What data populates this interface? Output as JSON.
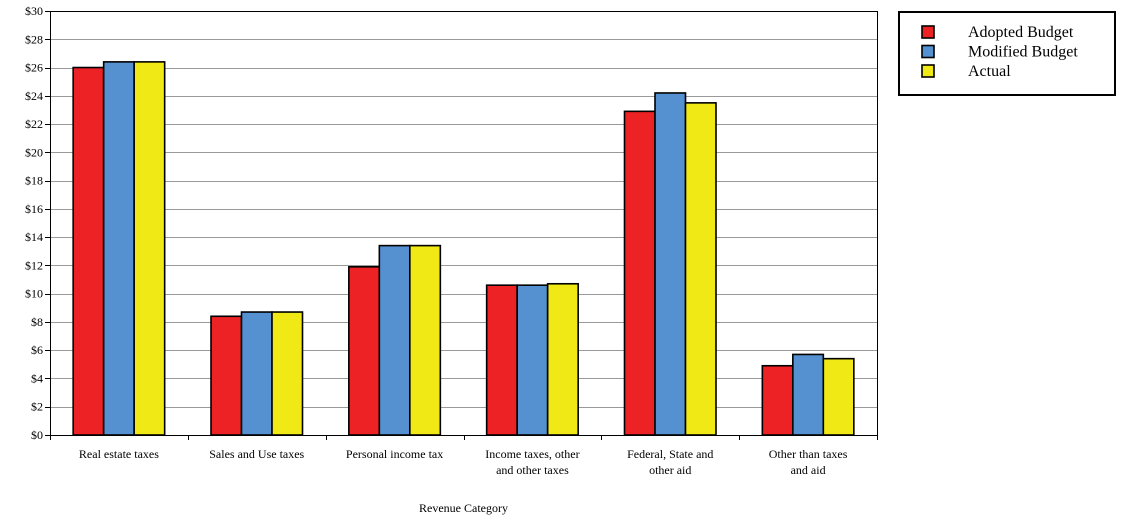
{
  "chart_data": {
    "type": "bar",
    "title": "",
    "xlabel": "Revenue Category",
    "ylabel": "",
    "ylim": [
      0,
      30
    ],
    "ytick_step": 2,
    "ytick_prefix": "$",
    "grid": true,
    "legend_position": "top-right",
    "categories": [
      "Real estate taxes",
      "Sales and Use taxes",
      "Personal income tax",
      "Income taxes, other and other taxes",
      "Federal, State and other aid",
      "Other than taxes and aid"
    ],
    "category_lines": [
      [
        "Real estate taxes"
      ],
      [
        "Sales and Use taxes"
      ],
      [
        "Personal income tax"
      ],
      [
        "Income taxes, other",
        "and other taxes"
      ],
      [
        "Federal, State and",
        "other aid"
      ],
      [
        "Other than taxes",
        "and aid"
      ]
    ],
    "series": [
      {
        "name": "Adopted Budget",
        "color": "#ed2224",
        "values": [
          26.0,
          8.4,
          11.9,
          10.6,
          22.9,
          4.9
        ]
      },
      {
        "name": "Modified Budget",
        "color": "#5590d0",
        "values": [
          26.4,
          8.7,
          13.4,
          10.6,
          24.2,
          5.7
        ]
      },
      {
        "name": "Actual",
        "color": "#f1e915",
        "values": [
          26.4,
          8.7,
          13.4,
          10.7,
          23.5,
          5.4
        ]
      }
    ]
  }
}
